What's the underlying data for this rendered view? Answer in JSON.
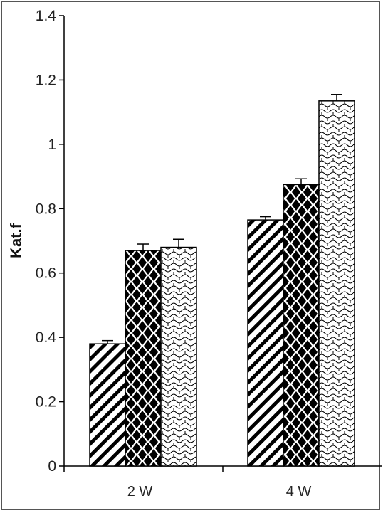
{
  "chart_data": {
    "type": "bar",
    "title": "",
    "xlabel": "",
    "ylabel": "Kat.f",
    "ylim": [
      0,
      1.4
    ],
    "yticks": [
      "0",
      "0.2",
      "0.4",
      "0.6",
      "0.8",
      "1",
      "1.2",
      "1.4"
    ],
    "categories": [
      "2 W",
      "4 W"
    ],
    "series": [
      {
        "pattern": "diagonal-stripes",
        "values": [
          0.38,
          0.765
        ],
        "errors": [
          0.01,
          0.01
        ]
      },
      {
        "pattern": "black-diamonds",
        "values": [
          0.67,
          0.875
        ],
        "errors": [
          0.02,
          0.018
        ]
      },
      {
        "pattern": "wave-lattice",
        "values": [
          0.68,
          1.135
        ],
        "errors": [
          0.025,
          0.02
        ]
      }
    ],
    "grid": false,
    "legend": "none",
    "colors": {
      "bar_stroke": "#000000",
      "pattern_ink": "#000000",
      "background": "#ffffff"
    }
  }
}
